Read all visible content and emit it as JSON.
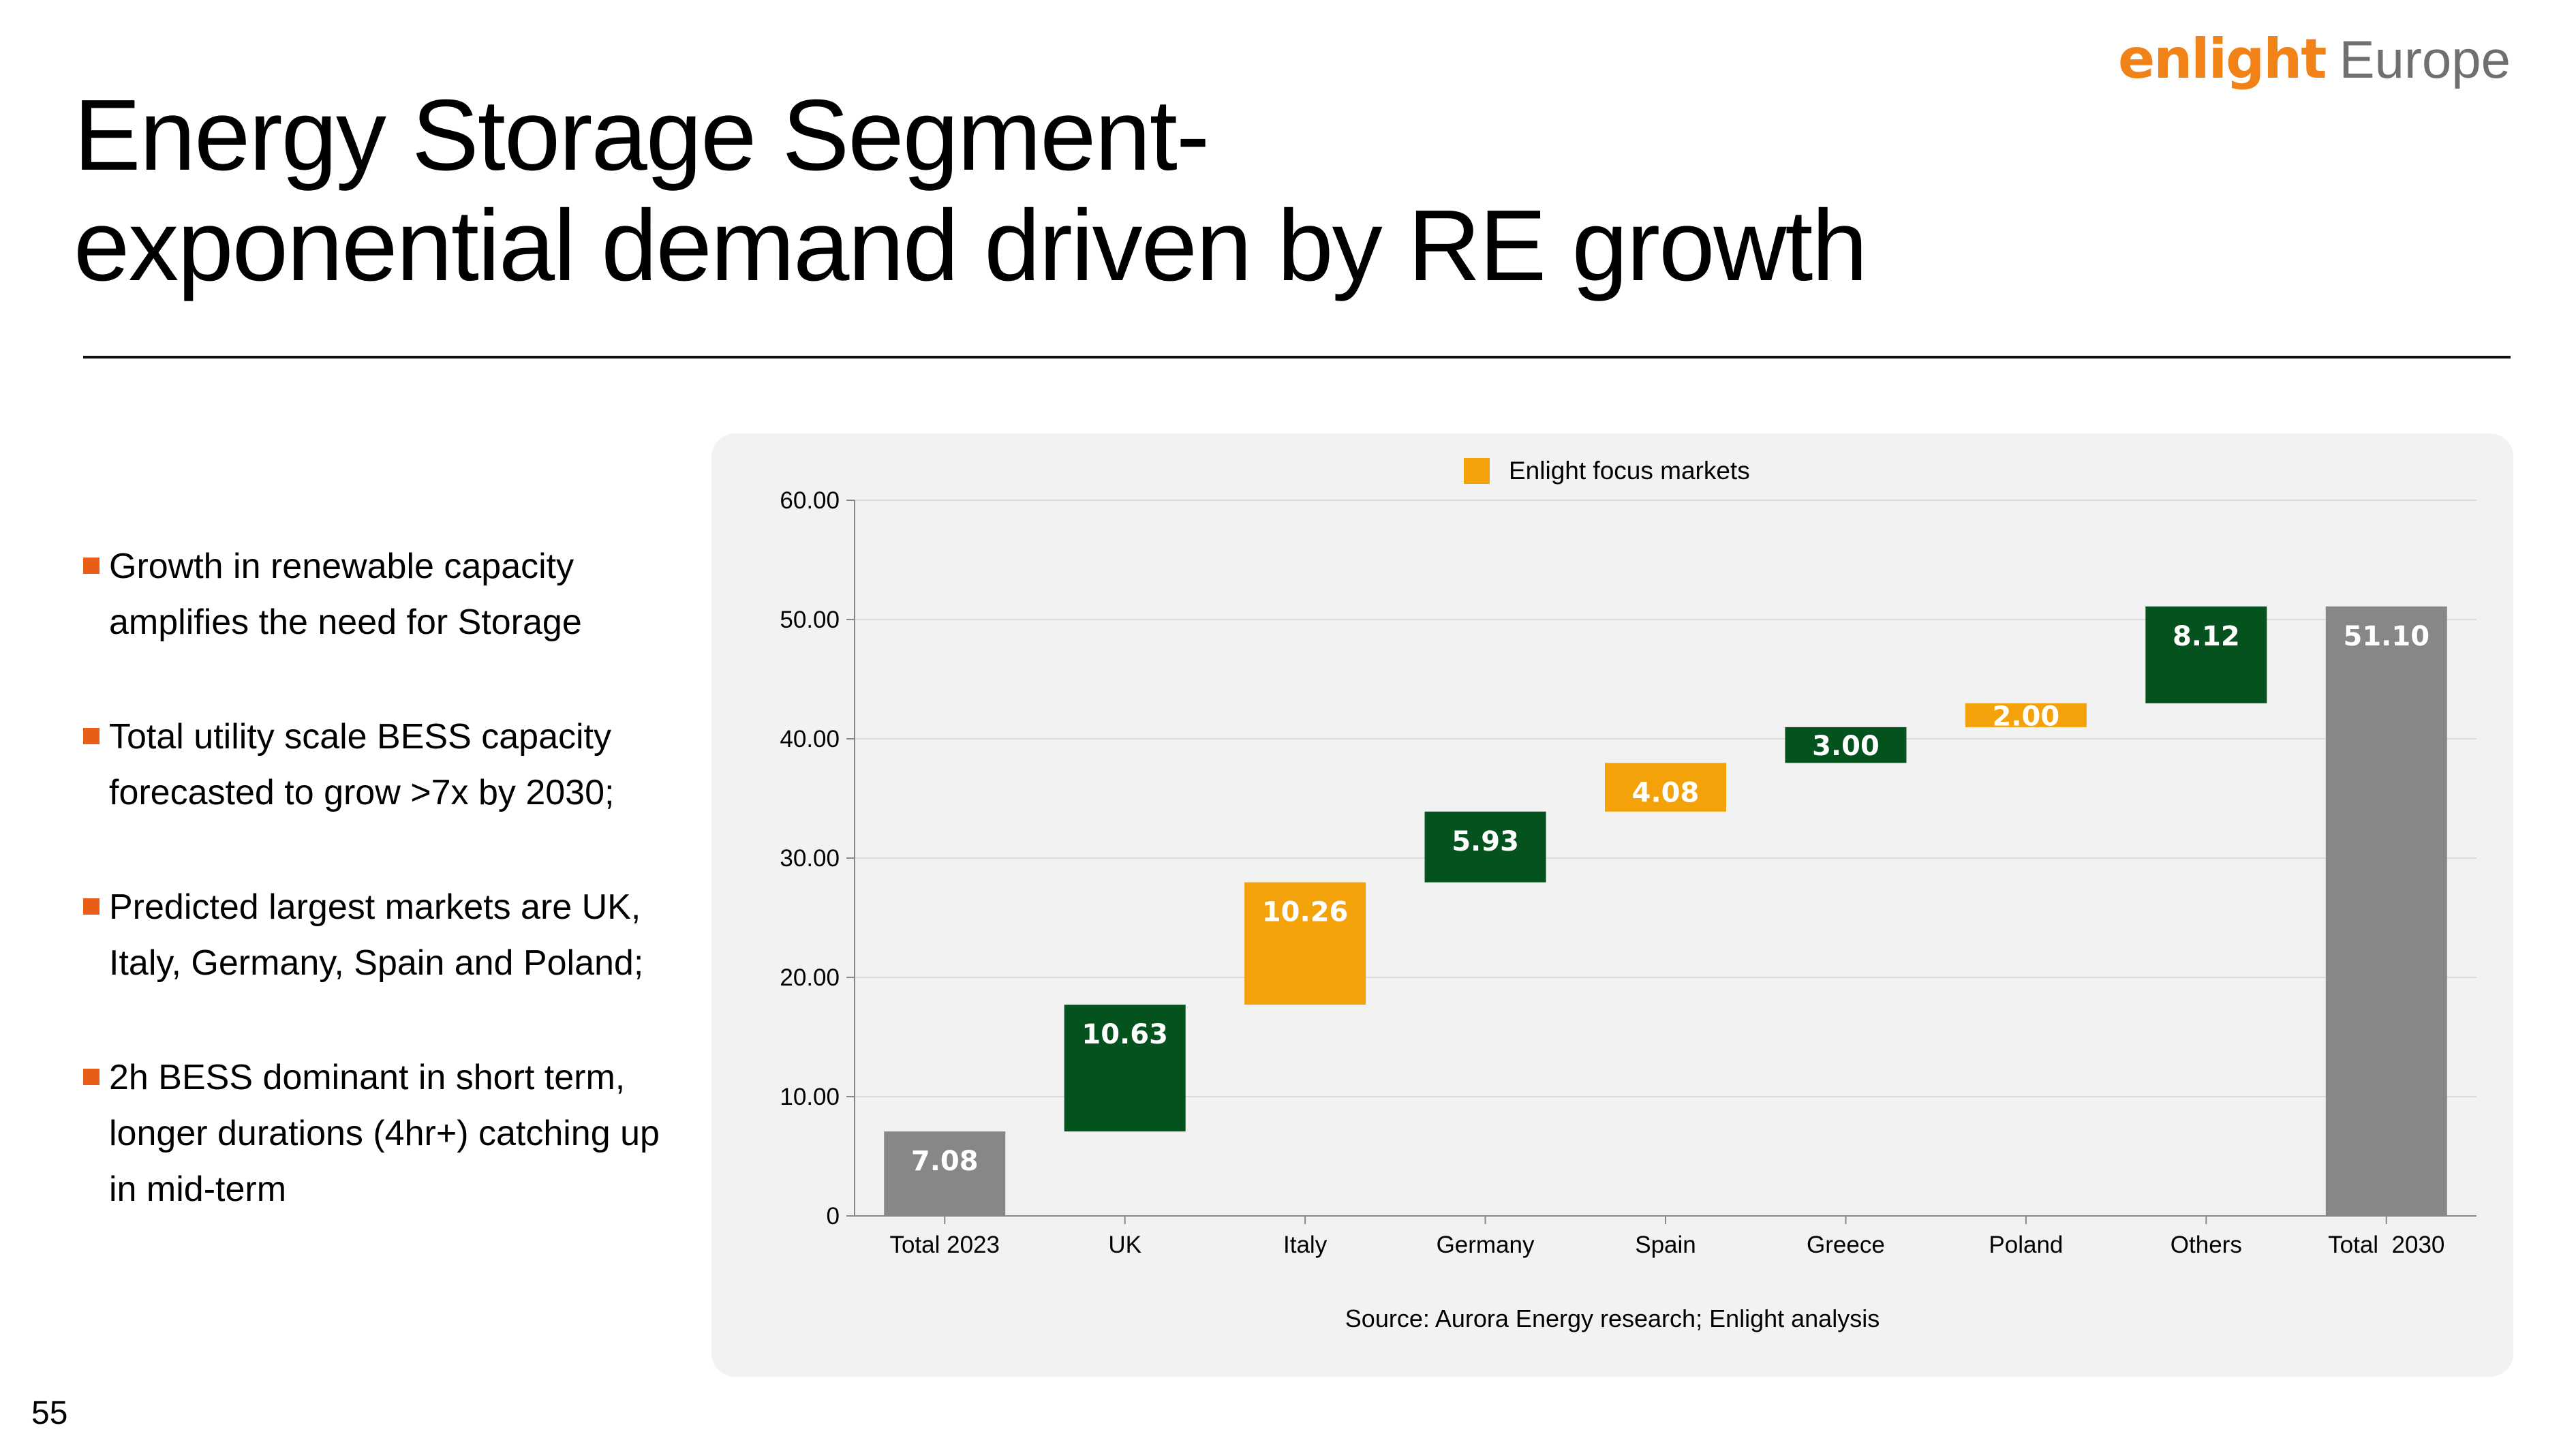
{
  "header": {
    "title_line1": "Energy Storage Segment-",
    "title_line2": "exponential demand driven by RE growth",
    "logo_mark": "enlight",
    "logo_word": "Europe"
  },
  "bullets": [
    "Growth in renewable capacity amplifies the need for Storage",
    "Total utility scale BESS capacity forecasted to grow >7x by 2030;",
    "Predicted largest markets are UK, Italy, Germany, Spain and Poland;",
    "2h BESS dominant in short term, longer durations (4hr+) catching up in mid-term"
  ],
  "page_number": "55",
  "colors": {
    "total": "#878787",
    "other_market": "#04521e",
    "focus_market": "#f4a20a",
    "accent": "#e85e16",
    "brand": "#f08218"
  },
  "chart_data": {
    "type": "bar",
    "subtype": "waterfall",
    "title": "",
    "legend": [
      {
        "label": "Enlight focus markets",
        "color": "#f4a20a"
      }
    ],
    "categories": [
      "Total 2023",
      "UK",
      "Italy",
      "Germany",
      "Spain",
      "Greece",
      "Poland",
      "Others",
      "Total  2030"
    ],
    "values": [
      7.08,
      10.63,
      10.26,
      5.93,
      4.08,
      3.0,
      2.0,
      8.12,
      51.1
    ],
    "value_labels": [
      "7.08",
      "10.63",
      "10.26",
      "5.93",
      "4.08",
      "3.00",
      "2.00",
      "8.12",
      "51.10"
    ],
    "kinds": [
      "total",
      "other",
      "focus",
      "other",
      "focus",
      "other",
      "focus",
      "other",
      "total"
    ],
    "ylim": [
      0,
      60
    ],
    "yticks": [
      0,
      10,
      20,
      30,
      40,
      50,
      60
    ],
    "ytick_labels": [
      "0",
      "10.00",
      "20.00",
      "30.00",
      "40.00",
      "50.00",
      "60.00"
    ],
    "xlabel": "",
    "ylabel": "",
    "grid": true,
    "source": "Source: Aurora Energy research; Enlight analysis"
  }
}
